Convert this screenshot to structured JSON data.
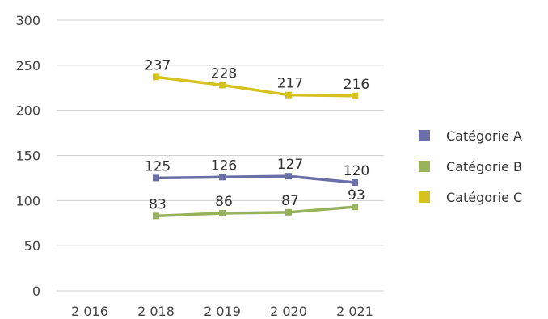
{
  "chart_data": {
    "type": "line",
    "categories": [
      "2 016",
      "2 018",
      "2 019",
      "2 020",
      "2 021"
    ],
    "ylim": [
      0,
      300
    ],
    "yticks": [
      "300",
      "250",
      "200",
      "150",
      "100",
      "50",
      "0"
    ],
    "grid": true,
    "legend_position": "right",
    "series": [
      {
        "name": "Catégorie A",
        "color": "#6b6fa8",
        "values": [
          null,
          125,
          126,
          127,
          120
        ]
      },
      {
        "name": "Catégorie B",
        "color": "#98b25c",
        "values": [
          null,
          83,
          86,
          87,
          93
        ]
      },
      {
        "name": "Catégorie C",
        "color": "#d6c21e",
        "values": [
          null,
          237,
          228,
          217,
          216
        ]
      }
    ]
  }
}
